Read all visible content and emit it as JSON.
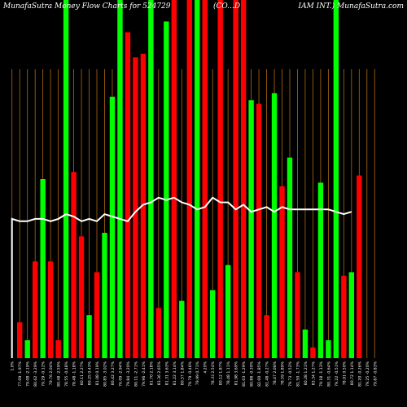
{
  "header": {
    "left": "MunafaSutra  Money Flow  Charts for 524729",
    "middle": "(CO...D",
    "right": "IAM INT.) MunafaSutra.com"
  },
  "colors": {
    "background": "#000000",
    "up": "#00ff00",
    "down": "#ff0000",
    "grid": "#b06a10",
    "line": "#ffffff",
    "label": "#ffffff"
  },
  "chart_data": {
    "type": "bar",
    "title": "",
    "xlabel": "",
    "ylabel": "",
    "ylim": [
      0,
      100
    ],
    "grid": "vertical",
    "categories": [
      "1.0%",
      "77.09 -1.97%",
      "79.08 -2.19%",
      "80.62 -3.29%",
      "79.29 -0.12%",
      "79.76 2.04%",
      "80.48 -2.59%",
      "78.55 -0.48%",
      "78.48 -1.18%",
      "80.11 2.27%",
      "80.25 0.43%",
      "81.08 0.19%",
      "80.85 -3.02%",
      "80.42 3.27%",
      "76.09 -2.94%",
      "79.84 -3.20%",
      "80.11 -2.71%",
      "79.96 -2.41%",
      "81.70 2.18%",
      "83.36 2.65%",
      "81.31 3.63%",
      "81.22 3.14%",
      "80.57 1.84%",
      "79.79 -0.46%",
      "79.99 0.71%",
      "4.20%",
      "78.33 2.54%",
      "80.12 1.87%",
      "78.48 1.11%",
      "81.98 3.69%",
      "81.03 -1.29%",
      "80.88 -0.30%",
      "82.00 -1.85%",
      "81.48 -0.27%",
      "78.47 2.06%",
      "78.59 1.89%",
      "79.73 -0.52%",
      "81.50 -1.73%",
      "80.28 1.21%",
      "83.34 1.27%",
      "79.18 -1.13%",
      "80.31 -0.64%",
      "79.22 -0.51%",
      "78.91 0.50%",
      "80.72 1.14%",
      "81.20 -0.26%",
      "79.25 -0.20%",
      "79.87 -0.83%"
    ],
    "bar_colors": [
      "none",
      "red",
      "green",
      "red",
      "green",
      "red",
      "red",
      "green",
      "red",
      "red",
      "green",
      "red",
      "green",
      "green",
      "green",
      "red",
      "red",
      "red",
      "green",
      "red",
      "green",
      "red",
      "green",
      "red",
      "green",
      "red",
      "green",
      "red",
      "green",
      "red",
      "red",
      "green",
      "red",
      "red",
      "green",
      "red",
      "green",
      "red",
      "green",
      "red",
      "green",
      "green",
      "green",
      "red",
      "green",
      "red",
      "red",
      "green"
    ],
    "series": [
      {
        "values": [
          0,
          10,
          5,
          27,
          50,
          27,
          5,
          100,
          52,
          34,
          12,
          24,
          35,
          73,
          100,
          91,
          84,
          85,
          100,
          14,
          94,
          100,
          16,
          100,
          100,
          100,
          19,
          100,
          26,
          100,
          100,
          72,
          71,
          12,
          74,
          48,
          56,
          24,
          8,
          3,
          49,
          5,
          100,
          23,
          24,
          51,
          0,
          0
        ]
      },
      {
        "values": [
          59,
          58,
          58,
          59,
          59,
          58,
          59,
          61,
          60,
          58,
          59,
          58,
          61,
          60,
          59,
          58,
          62,
          65,
          66,
          68,
          67,
          68,
          66,
          65,
          63,
          64,
          68,
          66,
          66,
          63,
          65,
          62,
          63,
          64,
          62,
          64,
          63,
          63,
          63,
          63,
          63,
          63,
          62,
          61,
          62,
          0,
          0,
          0
        ]
      }
    ]
  }
}
